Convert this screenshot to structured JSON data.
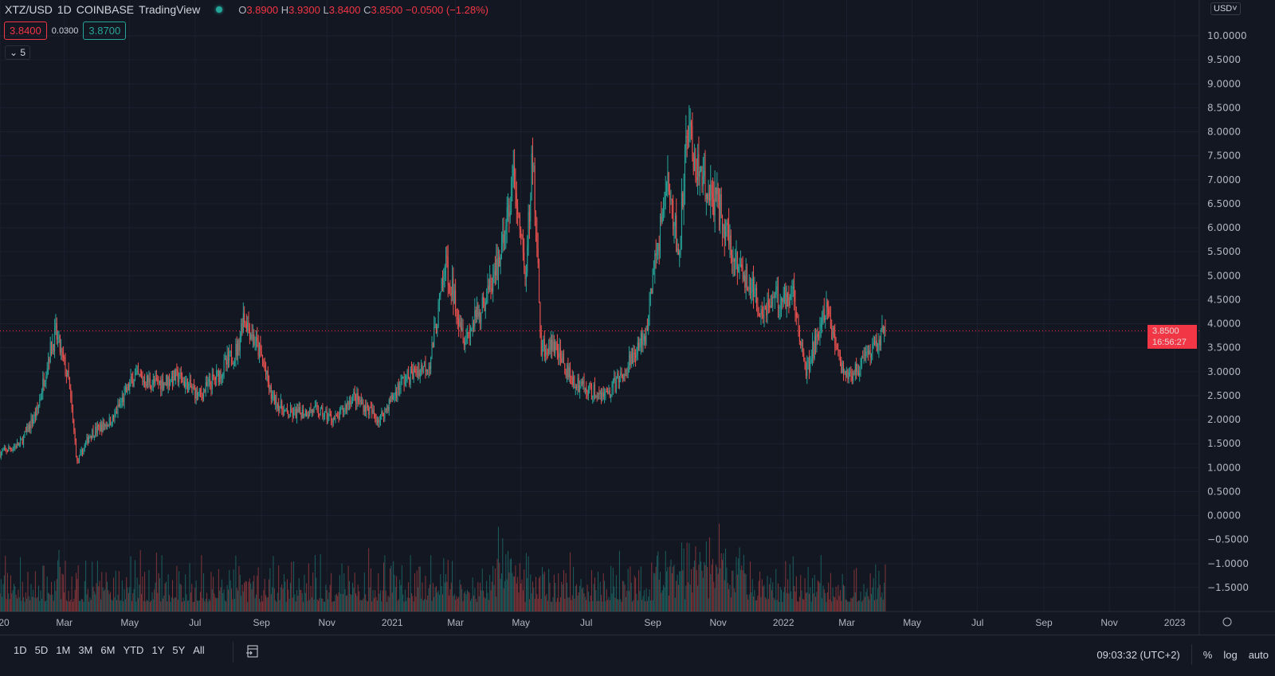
{
  "header": {
    "symbol": "XTZ/USD",
    "interval": "1D",
    "exchange": "COINBASE",
    "source": "TradingView",
    "ohlc": {
      "o_label": "O",
      "open": "3.8900",
      "h_label": "H",
      "high": "3.9300",
      "l_label": "L",
      "low": "3.8400",
      "c_label": "C",
      "close": "3.8500",
      "change": "−0.0500 (−1.28%)"
    },
    "bid": "3.8400",
    "spread": "0.0300",
    "ask": "3.8700",
    "collapse_label": "5",
    "currency": "USD"
  },
  "price_tag": {
    "price": "3.8500",
    "countdown": "16:56:27"
  },
  "bottom_bar": {
    "ranges": [
      "1D",
      "5D",
      "1M",
      "3M",
      "6M",
      "YTD",
      "1Y",
      "5Y",
      "All"
    ],
    "time": "09:03:32 (UTC+2)",
    "percent": "%",
    "log": "log",
    "auto": "auto"
  },
  "colors": {
    "background": "#131722",
    "up": "#26a69a",
    "down": "#ef5350",
    "price_line": "#f23645"
  },
  "icons": {
    "go_to_date": "calendar-arrow-icon",
    "settings": "gear-icon",
    "currency_dropdown": "chevron-down-icon"
  },
  "chart_data": {
    "type": "candlestick",
    "title": "XTZ/USD 1D COINBASE",
    "x_tick_labels": [
      "20",
      "Mar",
      "May",
      "Jul",
      "Sep",
      "Nov",
      "2021",
      "Mar",
      "May",
      "Jul",
      "Sep",
      "Nov",
      "2022",
      "Mar",
      "May",
      "Jul",
      "Sep",
      "Nov",
      "2023"
    ],
    "x_ticks": [
      "2020-01-01",
      "2020-03-01",
      "2020-05-01",
      "2020-07-01",
      "2020-09-01",
      "2020-11-01",
      "2021-01-01",
      "2021-03-01",
      "2021-05-01",
      "2021-07-01",
      "2021-09-01",
      "2021-11-01",
      "2022-01-01",
      "2022-03-01",
      "2022-05-01",
      "2022-07-01",
      "2022-09-01",
      "2022-11-01",
      "2023-01-01"
    ],
    "x_range": [
      "2020-01-01",
      "2023-01-20"
    ],
    "y_ticks": [
      10,
      9.5,
      9,
      8.5,
      8,
      7.5,
      7,
      6.5,
      6,
      5.5,
      5,
      4.5,
      4,
      3.5,
      3,
      2.5,
      2,
      1.5,
      1,
      0.5,
      0,
      -0.5,
      -1,
      -1.5
    ],
    "y_tick_labels": [
      "10.0000",
      "9.5000",
      "9.0000",
      "8.5000",
      "8.0000",
      "7.5000",
      "7.0000",
      "6.5000",
      "6.0000",
      "5.5000",
      "5.0000",
      "4.5000",
      "4.0000",
      "3.5000",
      "3.0000",
      "2.5000",
      "2.0000",
      "1.5000",
      "1.0000",
      "0.5000",
      "0.0000",
      "−0.5000",
      "−1.0000",
      "−1.5000"
    ],
    "y_range": [
      -1.75,
      10.7
    ],
    "last_price": 3.85,
    "approx_close_path": [
      [
        "2020-01-01",
        1.3
      ],
      [
        "2020-01-20",
        1.5
      ],
      [
        "2020-02-05",
        2.2
      ],
      [
        "2020-02-15",
        3.3
      ],
      [
        "2020-02-22",
        3.8
      ],
      [
        "2020-03-05",
        2.8
      ],
      [
        "2020-03-13",
        1.1
      ],
      [
        "2020-03-25",
        1.7
      ],
      [
        "2020-04-15",
        2.0
      ],
      [
        "2020-05-05",
        2.9
      ],
      [
        "2020-05-25",
        2.75
      ],
      [
        "2020-06-15",
        2.9
      ],
      [
        "2020-07-05",
        2.5
      ],
      [
        "2020-07-25",
        3.0
      ],
      [
        "2020-08-10",
        3.5
      ],
      [
        "2020-08-15",
        4.2
      ],
      [
        "2020-09-01",
        3.3
      ],
      [
        "2020-09-10",
        2.5
      ],
      [
        "2020-09-25",
        2.1
      ],
      [
        "2020-10-20",
        2.2
      ],
      [
        "2020-11-10",
        2.0
      ],
      [
        "2020-11-25",
        2.5
      ],
      [
        "2020-12-20",
        2.0
      ],
      [
        "2021-01-10",
        2.8
      ],
      [
        "2021-02-05",
        3.2
      ],
      [
        "2021-02-20",
        5.2
      ],
      [
        "2021-03-10",
        3.7
      ],
      [
        "2021-03-25",
        4.3
      ],
      [
        "2021-04-10",
        5.2
      ],
      [
        "2021-04-25",
        7.0
      ],
      [
        "2021-05-05",
        5.0
      ],
      [
        "2021-05-12",
        7.5
      ],
      [
        "2021-05-20",
        3.5
      ],
      [
        "2021-06-01",
        3.5
      ],
      [
        "2021-06-20",
        2.8
      ],
      [
        "2021-07-05",
        2.6
      ],
      [
        "2021-07-20",
        2.5
      ],
      [
        "2021-08-05",
        3.0
      ],
      [
        "2021-08-25",
        3.8
      ],
      [
        "2021-09-05",
        5.5
      ],
      [
        "2021-09-15",
        7.0
      ],
      [
        "2021-09-25",
        5.5
      ],
      [
        "2021-10-03",
        8.0
      ],
      [
        "2021-10-15",
        7.0
      ],
      [
        "2021-11-01",
        6.5
      ],
      [
        "2021-11-15",
        5.5
      ],
      [
        "2021-12-01",
        4.8
      ],
      [
        "2021-12-10",
        4.3
      ],
      [
        "2021-12-25",
        4.5
      ],
      [
        "2022-01-10",
        4.7
      ],
      [
        "2022-01-22",
        3.0
      ],
      [
        "2022-02-10",
        4.3
      ],
      [
        "2022-02-25",
        3.0
      ],
      [
        "2022-03-10",
        3.0
      ],
      [
        "2022-03-25",
        3.4
      ],
      [
        "2022-04-06",
        3.85
      ]
    ],
    "grid": true,
    "volume_pane": true
  }
}
